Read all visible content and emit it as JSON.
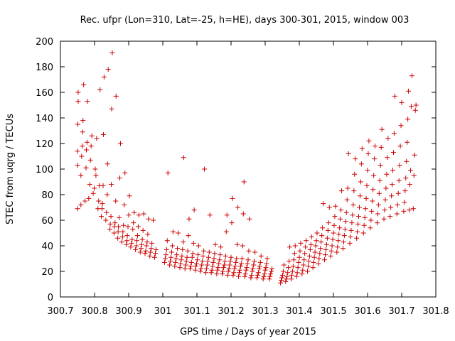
{
  "chart_data": {
    "type": "scatter",
    "title": "Rec. ufpr (Lon=310, Lat=-25, h=HE), days 300-301, 2015, window 003",
    "xlabel": "GPS time / Days of year 2015",
    "ylabel": "STEC from uqrg / TECUs",
    "xlim": [
      300.7,
      301.8
    ],
    "ylim": [
      0,
      200
    ],
    "xticks": [
      "300.7",
      "300.8",
      "300.9",
      "301",
      "301.1",
      "301.2",
      "301.3",
      "301.4",
      "301.5",
      "301.6",
      "301.7",
      "301.8"
    ],
    "yticks": [
      "0",
      "20",
      "40",
      "60",
      "80",
      "100",
      "120",
      "140",
      "160",
      "180",
      "200"
    ],
    "grid": false,
    "legend": "none",
    "marker": "+",
    "color": "#cc0000",
    "points": [
      [
        300.75,
        69
      ],
      [
        300.75,
        103
      ],
      [
        300.75,
        114
      ],
      [
        300.751,
        135
      ],
      [
        300.752,
        153
      ],
      [
        300.752,
        160
      ],
      [
        300.76,
        72
      ],
      [
        300.76,
        95
      ],
      [
        300.762,
        110
      ],
      [
        300.764,
        118
      ],
      [
        300.765,
        129
      ],
      [
        300.766,
        138
      ],
      [
        300.768,
        166
      ],
      [
        300.772,
        75
      ],
      [
        300.775,
        101
      ],
      [
        300.776,
        115
      ],
      [
        300.778,
        121
      ],
      [
        300.779,
        153
      ],
      [
        300.783,
        77
      ],
      [
        300.786,
        88
      ],
      [
        300.788,
        107
      ],
      [
        300.79,
        118
      ],
      [
        300.792,
        126
      ],
      [
        300.796,
        81
      ],
      [
        300.799,
        85
      ],
      [
        300.802,
        100
      ],
      [
        300.804,
        95
      ],
      [
        300.806,
        124
      ],
      [
        300.81,
        69
      ],
      [
        300.812,
        75
      ],
      [
        300.814,
        87
      ],
      [
        300.816,
        162
      ],
      [
        300.82,
        63
      ],
      [
        300.822,
        69
      ],
      [
        300.823,
        73
      ],
      [
        300.825,
        87
      ],
      [
        300.826,
        127
      ],
      [
        300.828,
        172
      ],
      [
        300.833,
        60
      ],
      [
        300.835,
        66
      ],
      [
        300.837,
        80
      ],
      [
        300.838,
        104
      ],
      [
        300.84,
        178
      ],
      [
        300.845,
        53
      ],
      [
        300.846,
        57
      ],
      [
        300.848,
        63
      ],
      [
        300.849,
        88
      ],
      [
        300.85,
        147
      ],
      [
        300.852,
        191
      ],
      [
        300.857,
        50
      ],
      [
        300.858,
        55
      ],
      [
        300.86,
        58
      ],
      [
        300.862,
        75
      ],
      [
        300.863,
        157
      ],
      [
        300.868,
        46
      ],
      [
        300.869,
        51
      ],
      [
        300.87,
        55
      ],
      [
        300.872,
        62
      ],
      [
        300.874,
        93
      ],
      [
        300.876,
        120
      ],
      [
        300.88,
        43
      ],
      [
        300.882,
        47
      ],
      [
        300.883,
        51
      ],
      [
        300.885,
        56
      ],
      [
        300.887,
        72
      ],
      [
        300.889,
        97
      ],
      [
        300.893,
        41
      ],
      [
        300.895,
        44
      ],
      [
        300.896,
        48
      ],
      [
        300.898,
        55
      ],
      [
        300.9,
        64
      ],
      [
        300.902,
        79
      ],
      [
        300.906,
        39
      ],
      [
        300.908,
        42
      ],
      [
        300.91,
        45
      ],
      [
        300.912,
        53
      ],
      [
        300.914,
        58
      ],
      [
        300.916,
        66
      ],
      [
        300.92,
        37
      ],
      [
        300.922,
        40
      ],
      [
        300.924,
        44
      ],
      [
        300.926,
        48
      ],
      [
        300.928,
        55
      ],
      [
        300.93,
        64
      ],
      [
        300.934,
        35
      ],
      [
        300.936,
        38
      ],
      [
        300.938,
        41
      ],
      [
        300.94,
        45
      ],
      [
        300.942,
        52
      ],
      [
        300.944,
        65
      ],
      [
        300.948,
        34
      ],
      [
        300.95,
        36
      ],
      [
        300.952,
        40
      ],
      [
        300.954,
        43
      ],
      [
        300.956,
        49
      ],
      [
        300.958,
        61
      ],
      [
        300.962,
        32
      ],
      [
        300.964,
        35
      ],
      [
        300.966,
        38
      ],
      [
        300.968,
        42
      ],
      [
        300.972,
        60
      ],
      [
        300.976,
        31
      ],
      [
        300.978,
        34
      ],
      [
        300.98,
        37
      ],
      [
        301.005,
        27
      ],
      [
        301.007,
        30
      ],
      [
        301.009,
        33
      ],
      [
        301.011,
        37
      ],
      [
        301.013,
        44
      ],
      [
        301.015,
        97
      ],
      [
        301.02,
        25
      ],
      [
        301.022,
        28
      ],
      [
        301.024,
        31
      ],
      [
        301.026,
        35
      ],
      [
        301.028,
        40
      ],
      [
        301.03,
        51
      ],
      [
        301.035,
        24
      ],
      [
        301.037,
        27
      ],
      [
        301.039,
        30
      ],
      [
        301.041,
        33
      ],
      [
        301.043,
        38
      ],
      [
        301.045,
        50
      ],
      [
        301.05,
        23
      ],
      [
        301.052,
        26
      ],
      [
        301.054,
        29
      ],
      [
        301.056,
        32
      ],
      [
        301.058,
        37
      ],
      [
        301.06,
        43
      ],
      [
        301.061,
        109
      ],
      [
        301.065,
        22
      ],
      [
        301.067,
        25
      ],
      [
        301.069,
        28
      ],
      [
        301.071,
        31
      ],
      [
        301.073,
        36
      ],
      [
        301.075,
        48
      ],
      [
        301.077,
        61
      ],
      [
        301.08,
        22
      ],
      [
        301.082,
        24
      ],
      [
        301.084,
        27
      ],
      [
        301.086,
        31
      ],
      [
        301.088,
        34
      ],
      [
        301.09,
        42
      ],
      [
        301.092,
        68
      ],
      [
        301.095,
        21
      ],
      [
        301.097,
        24
      ],
      [
        301.099,
        26
      ],
      [
        301.101,
        29
      ],
      [
        301.103,
        33
      ],
      [
        301.105,
        40
      ],
      [
        301.11,
        20
      ],
      [
        301.112,
        22
      ],
      [
        301.114,
        25
      ],
      [
        301.116,
        28
      ],
      [
        301.118,
        32
      ],
      [
        301.12,
        36
      ],
      [
        301.122,
        100
      ],
      [
        301.126,
        19
      ],
      [
        301.128,
        22
      ],
      [
        301.13,
        25
      ],
      [
        301.132,
        28
      ],
      [
        301.134,
        31
      ],
      [
        301.136,
        35
      ],
      [
        301.138,
        64
      ],
      [
        301.142,
        19
      ],
      [
        301.144,
        21
      ],
      [
        301.146,
        24
      ],
      [
        301.148,
        27
      ],
      [
        301.15,
        30
      ],
      [
        301.152,
        34
      ],
      [
        301.154,
        41
      ],
      [
        301.158,
        18
      ],
      [
        301.16,
        21
      ],
      [
        301.162,
        23
      ],
      [
        301.164,
        26
      ],
      [
        301.166,
        29
      ],
      [
        301.168,
        33
      ],
      [
        301.17,
        39
      ],
      [
        301.174,
        18
      ],
      [
        301.176,
        20
      ],
      [
        301.178,
        23
      ],
      [
        301.18,
        25
      ],
      [
        301.182,
        28
      ],
      [
        301.184,
        32
      ],
      [
        301.186,
        51
      ],
      [
        301.188,
        64
      ],
      [
        301.19,
        17
      ],
      [
        301.192,
        20
      ],
      [
        301.194,
        22
      ],
      [
        301.196,
        25
      ],
      [
        301.198,
        28
      ],
      [
        301.2,
        31
      ],
      [
        301.202,
        58
      ],
      [
        301.204,
        77
      ],
      [
        301.206,
        17
      ],
      [
        301.208,
        19
      ],
      [
        301.21,
        22
      ],
      [
        301.212,
        24
      ],
      [
        301.214,
        27
      ],
      [
        301.216,
        30
      ],
      [
        301.218,
        41
      ],
      [
        301.22,
        70
      ],
      [
        301.222,
        16
      ],
      [
        301.224,
        19
      ],
      [
        301.226,
        21
      ],
      [
        301.228,
        24
      ],
      [
        301.23,
        26
      ],
      [
        301.232,
        30
      ],
      [
        301.234,
        40
      ],
      [
        301.236,
        65
      ],
      [
        301.238,
        90
      ],
      [
        301.24,
        16
      ],
      [
        301.242,
        18
      ],
      [
        301.244,
        21
      ],
      [
        301.246,
        23
      ],
      [
        301.248,
        26
      ],
      [
        301.25,
        29
      ],
      [
        301.252,
        36
      ],
      [
        301.254,
        61
      ],
      [
        301.258,
        15
      ],
      [
        301.26,
        17
      ],
      [
        301.262,
        20
      ],
      [
        301.264,
        22
      ],
      [
        301.266,
        25
      ],
      [
        301.268,
        28
      ],
      [
        301.27,
        35
      ],
      [
        301.276,
        15
      ],
      [
        301.278,
        17
      ],
      [
        301.28,
        19
      ],
      [
        301.282,
        22
      ],
      [
        301.284,
        24
      ],
      [
        301.286,
        27
      ],
      [
        301.288,
        32
      ],
      [
        301.294,
        14
      ],
      [
        301.296,
        16
      ],
      [
        301.298,
        18
      ],
      [
        301.3,
        21
      ],
      [
        301.302,
        23
      ],
      [
        301.304,
        26
      ],
      [
        301.306,
        30
      ],
      [
        301.312,
        14
      ],
      [
        301.314,
        16
      ],
      [
        301.316,
        18
      ],
      [
        301.318,
        20
      ],
      [
        301.32,
        22
      ],
      [
        301.345,
        11
      ],
      [
        301.347,
        13
      ],
      [
        301.349,
        15
      ],
      [
        301.351,
        17
      ],
      [
        301.353,
        20
      ],
      [
        301.355,
        25
      ],
      [
        301.36,
        12
      ],
      [
        301.362,
        14
      ],
      [
        301.364,
        16
      ],
      [
        301.366,
        19
      ],
      [
        301.368,
        23
      ],
      [
        301.37,
        28
      ],
      [
        301.372,
        39
      ],
      [
        301.376,
        14
      ],
      [
        301.378,
        17
      ],
      [
        301.38,
        20
      ],
      [
        301.382,
        24
      ],
      [
        301.384,
        29
      ],
      [
        301.386,
        34
      ],
      [
        301.388,
        40
      ],
      [
        301.392,
        16
      ],
      [
        301.394,
        19
      ],
      [
        301.396,
        23
      ],
      [
        301.398,
        27
      ],
      [
        301.4,
        31
      ],
      [
        301.402,
        36
      ],
      [
        301.404,
        42
      ],
      [
        301.408,
        18
      ],
      [
        301.41,
        21
      ],
      [
        301.412,
        25
      ],
      [
        301.414,
        29
      ],
      [
        301.416,
        34
      ],
      [
        301.418,
        39
      ],
      [
        301.42,
        44
      ],
      [
        301.424,
        20
      ],
      [
        301.426,
        24
      ],
      [
        301.428,
        28
      ],
      [
        301.43,
        32
      ],
      [
        301.432,
        37
      ],
      [
        301.434,
        41
      ],
      [
        301.436,
        47
      ],
      [
        301.44,
        23
      ],
      [
        301.442,
        27
      ],
      [
        301.444,
        31
      ],
      [
        301.446,
        35
      ],
      [
        301.448,
        40
      ],
      [
        301.45,
        44
      ],
      [
        301.452,
        50
      ],
      [
        301.456,
        26
      ],
      [
        301.458,
        30
      ],
      [
        301.46,
        34
      ],
      [
        301.462,
        38
      ],
      [
        301.464,
        43
      ],
      [
        301.466,
        48
      ],
      [
        301.468,
        54
      ],
      [
        301.47,
        73
      ],
      [
        301.474,
        29
      ],
      [
        301.476,
        33
      ],
      [
        301.478,
        37
      ],
      [
        301.48,
        41
      ],
      [
        301.482,
        46
      ],
      [
        301.484,
        52
      ],
      [
        301.486,
        58
      ],
      [
        301.488,
        70
      ],
      [
        301.492,
        32
      ],
      [
        301.494,
        36
      ],
      [
        301.496,
        40
      ],
      [
        301.498,
        45
      ],
      [
        301.5,
        50
      ],
      [
        301.502,
        56
      ],
      [
        301.504,
        63
      ],
      [
        301.506,
        71
      ],
      [
        301.51,
        35
      ],
      [
        301.512,
        39
      ],
      [
        301.514,
        44
      ],
      [
        301.516,
        49
      ],
      [
        301.518,
        54
      ],
      [
        301.52,
        61
      ],
      [
        301.522,
        68
      ],
      [
        301.524,
        83
      ],
      [
        301.528,
        38
      ],
      [
        301.53,
        43
      ],
      [
        301.532,
        48
      ],
      [
        301.534,
        53
      ],
      [
        301.536,
        59
      ],
      [
        301.538,
        66
      ],
      [
        301.54,
        76
      ],
      [
        301.542,
        85
      ],
      [
        301.544,
        112
      ],
      [
        301.548,
        42
      ],
      [
        301.55,
        47
      ],
      [
        301.552,
        52
      ],
      [
        301.554,
        58
      ],
      [
        301.556,
        64
      ],
      [
        301.558,
        72
      ],
      [
        301.56,
        83
      ],
      [
        301.562,
        96
      ],
      [
        301.564,
        108
      ],
      [
        301.568,
        46
      ],
      [
        301.57,
        51
      ],
      [
        301.572,
        57
      ],
      [
        301.574,
        63
      ],
      [
        301.576,
        70
      ],
      [
        301.578,
        79
      ],
      [
        301.58,
        90
      ],
      [
        301.582,
        104
      ],
      [
        301.584,
        116
      ],
      [
        301.588,
        50
      ],
      [
        301.59,
        56
      ],
      [
        301.592,
        62
      ],
      [
        301.594,
        69
      ],
      [
        301.596,
        77
      ],
      [
        301.598,
        87
      ],
      [
        301.6,
        99
      ],
      [
        301.602,
        112
      ],
      [
        301.604,
        122
      ],
      [
        301.608,
        54
      ],
      [
        301.61,
        60
      ],
      [
        301.612,
        67
      ],
      [
        301.614,
        75
      ],
      [
        301.616,
        84
      ],
      [
        301.618,
        95
      ],
      [
        301.62,
        108
      ],
      [
        301.622,
        118
      ],
      [
        301.628,
        58
      ],
      [
        301.63,
        65
      ],
      [
        301.632,
        72
      ],
      [
        301.634,
        81
      ],
      [
        301.636,
        91
      ],
      [
        301.638,
        103
      ],
      [
        301.64,
        117
      ],
      [
        301.642,
        131
      ],
      [
        301.648,
        61
      ],
      [
        301.65,
        68
      ],
      [
        301.652,
        76
      ],
      [
        301.654,
        85
      ],
      [
        301.656,
        96
      ],
      [
        301.658,
        109
      ],
      [
        301.66,
        124
      ],
      [
        301.666,
        63
      ],
      [
        301.668,
        70
      ],
      [
        301.67,
        79
      ],
      [
        301.672,
        88
      ],
      [
        301.674,
        99
      ],
      [
        301.676,
        113
      ],
      [
        301.678,
        128
      ],
      [
        301.68,
        157
      ],
      [
        301.686,
        65
      ],
      [
        301.688,
        72
      ],
      [
        301.69,
        81
      ],
      [
        301.692,
        91
      ],
      [
        301.694,
        103
      ],
      [
        301.696,
        118
      ],
      [
        301.698,
        134
      ],
      [
        301.7,
        152
      ],
      [
        301.706,
        67
      ],
      [
        301.708,
        74
      ],
      [
        301.71,
        83
      ],
      [
        301.712,
        93
      ],
      [
        301.714,
        106
      ],
      [
        301.716,
        121
      ],
      [
        301.718,
        139
      ],
      [
        301.72,
        161
      ],
      [
        301.722,
        68
      ],
      [
        301.724,
        88
      ],
      [
        301.726,
        99
      ],
      [
        301.728,
        149
      ],
      [
        301.73,
        173
      ],
      [
        301.734,
        69
      ],
      [
        301.736,
        95
      ],
      [
        301.738,
        111
      ],
      [
        301.74,
        146
      ],
      [
        301.742,
        150
      ]
    ]
  }
}
